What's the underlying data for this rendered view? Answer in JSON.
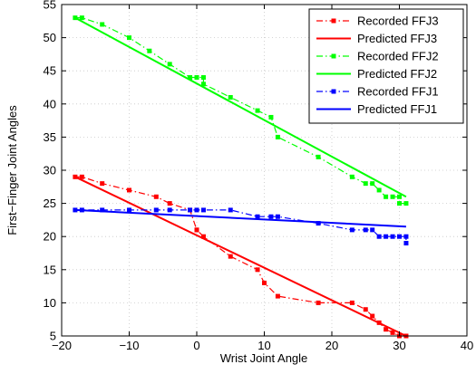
{
  "chart_data": {
    "type": "line",
    "title": "",
    "xlabel": "Wrist Joint Angle",
    "ylabel": "First−Finger Joint Angles",
    "xlim": [
      -20,
      40
    ],
    "ylim": [
      5,
      55
    ],
    "xticks": [
      "−20",
      "−10",
      "0",
      "10",
      "20",
      "30",
      "40"
    ],
    "yticks": [
      "5",
      "10",
      "15",
      "20",
      "25",
      "30",
      "35",
      "40",
      "45",
      "50",
      "55"
    ],
    "grid": true,
    "legend_position": "top-right",
    "series": [
      {
        "name": "Recorded FFJ3",
        "color": "#ff0000",
        "style": "dash-dot",
        "marker": "square",
        "points": [
          [
            -18,
            29
          ],
          [
            -17,
            29
          ],
          [
            -14,
            28
          ],
          [
            -10,
            27
          ],
          [
            -6,
            26
          ],
          [
            -4,
            25
          ],
          [
            -1,
            24
          ],
          [
            0,
            21
          ],
          [
            0,
            21
          ],
          [
            1,
            20
          ],
          [
            5,
            17
          ],
          [
            9,
            15
          ],
          [
            10,
            13
          ],
          [
            12,
            11
          ],
          [
            18,
            10
          ],
          [
            23,
            10
          ],
          [
            25,
            9
          ],
          [
            26,
            8
          ],
          [
            27,
            7
          ],
          [
            28,
            6
          ],
          [
            29,
            5.5
          ],
          [
            30,
            5
          ],
          [
            30,
            5
          ],
          [
            31,
            5
          ]
        ]
      },
      {
        "name": "Predicted FFJ3",
        "color": "#ff0000",
        "style": "solid",
        "marker": "none",
        "points": [
          [
            -18,
            29
          ],
          [
            31,
            5
          ]
        ]
      },
      {
        "name": "Recorded FFJ2",
        "color": "#00ff00",
        "style": "dash-dot",
        "marker": "square",
        "points": [
          [
            -18,
            53
          ],
          [
            -17,
            53
          ],
          [
            -14,
            52
          ],
          [
            -10,
            50
          ],
          [
            -7,
            48
          ],
          [
            -4,
            46
          ],
          [
            -1,
            44
          ],
          [
            0,
            44
          ],
          [
            1,
            44
          ],
          [
            1,
            43
          ],
          [
            5,
            41
          ],
          [
            9,
            39
          ],
          [
            11,
            38
          ],
          [
            12,
            35
          ],
          [
            18,
            32
          ],
          [
            23,
            29
          ],
          [
            25,
            28
          ],
          [
            26,
            28
          ],
          [
            27,
            27
          ],
          [
            28,
            26
          ],
          [
            29,
            26
          ],
          [
            30,
            26
          ],
          [
            30,
            25
          ],
          [
            31,
            25
          ]
        ]
      },
      {
        "name": "Predicted FFJ2",
        "color": "#00ff00",
        "style": "solid",
        "marker": "none",
        "points": [
          [
            -18,
            53
          ],
          [
            31,
            26
          ]
        ]
      },
      {
        "name": "Recorded FFJ1",
        "color": "#0000ff",
        "style": "dash-dot",
        "marker": "square",
        "points": [
          [
            -18,
            24
          ],
          [
            -17,
            24
          ],
          [
            -14,
            24
          ],
          [
            -10,
            24
          ],
          [
            -6,
            24
          ],
          [
            -4,
            24
          ],
          [
            -1,
            24
          ],
          [
            0,
            24
          ],
          [
            1,
            24
          ],
          [
            5,
            24
          ],
          [
            9,
            23
          ],
          [
            11,
            23
          ],
          [
            12,
            23
          ],
          [
            18,
            22
          ],
          [
            23,
            21
          ],
          [
            25,
            21
          ],
          [
            26,
            21
          ],
          [
            27,
            20
          ],
          [
            28,
            20
          ],
          [
            29,
            20
          ],
          [
            30,
            20
          ],
          [
            31,
            20
          ],
          [
            31,
            19
          ]
        ]
      },
      {
        "name": "Predicted FFJ1",
        "color": "#0000ff",
        "style": "solid",
        "marker": "none",
        "points": [
          [
            -18,
            24
          ],
          [
            31,
            21.5
          ]
        ]
      }
    ]
  }
}
